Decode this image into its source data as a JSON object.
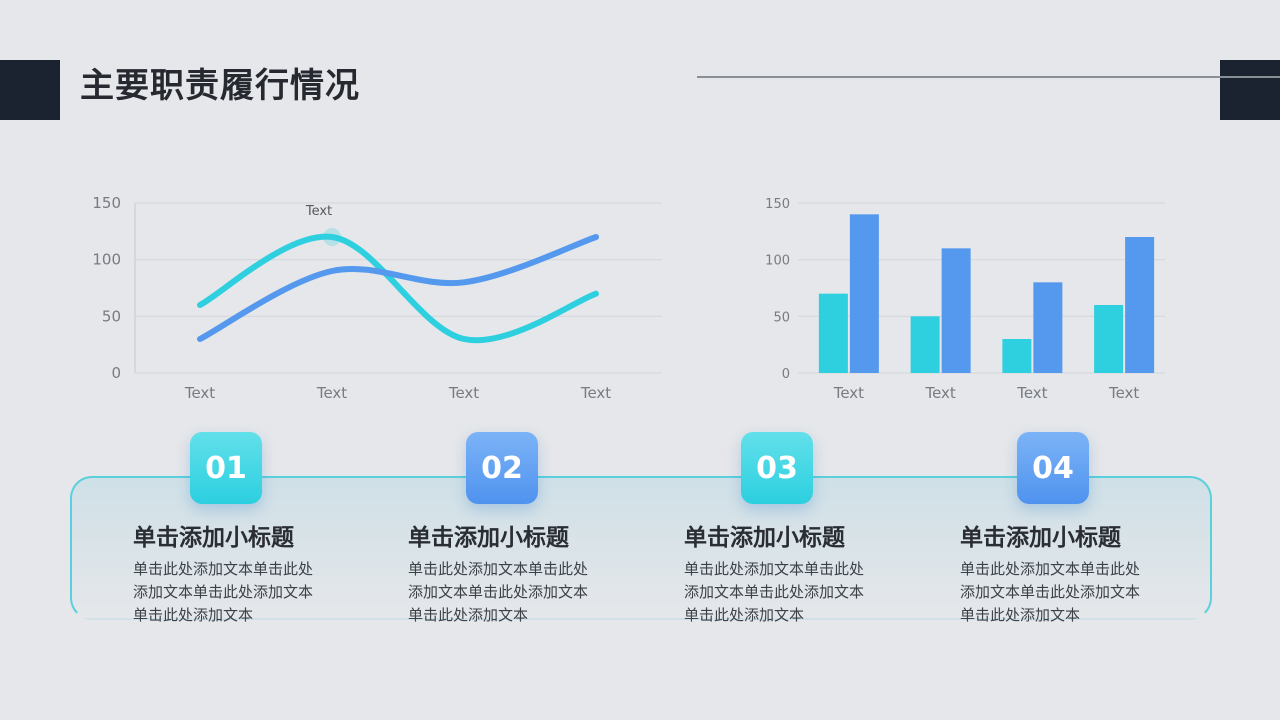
{
  "page": {
    "title": "主要职责履行情况"
  },
  "colors": {
    "cyan": "#2ed0e0",
    "blue": "#5599ee",
    "grid": "#d4d7db",
    "text": "#777b82"
  },
  "chart_data": [
    {
      "type": "line",
      "categories": [
        "Text",
        "Text",
        "Text",
        "Text"
      ],
      "yticks": [
        0,
        50,
        100,
        150
      ],
      "ylim": [
        0,
        150
      ],
      "grid": true,
      "series": [
        {
          "values": [
            60,
            120,
            30,
            70
          ],
          "color": "#2ed0e0"
        },
        {
          "values": [
            30,
            90,
            80,
            120
          ],
          "color": "#5599ee"
        }
      ],
      "annotation": {
        "text": "Text",
        "category_index": 1
      }
    },
    {
      "type": "bar",
      "categories": [
        "Text",
        "Text",
        "Text",
        "Text"
      ],
      "yticks": [
        0,
        50,
        100,
        150
      ],
      "ylim": [
        0,
        150
      ],
      "grid": true,
      "series": [
        {
          "values": [
            70,
            50,
            30,
            60
          ],
          "color": "#2ed0e0"
        },
        {
          "values": [
            140,
            110,
            80,
            120
          ],
          "color": "#5599ee"
        }
      ]
    }
  ],
  "cards": [
    {
      "num": "01",
      "title": "单击添加小标题",
      "body": "单击此处添加文本单击此处添加文本单击此处添加文本单击此处添加文本"
    },
    {
      "num": "02",
      "title": "单击添加小标题",
      "body": "单击此处添加文本单击此处添加文本单击此处添加文本单击此处添加文本"
    },
    {
      "num": "03",
      "title": "单击添加小标题",
      "body": "单击此处添加文本单击此处添加文本单击此处添加文本单击此处添加文本"
    },
    {
      "num": "04",
      "title": "单击添加小标题",
      "body": "单击此处添加文本单击此处添加文本单击此处添加文本单击此处添加文本"
    }
  ]
}
